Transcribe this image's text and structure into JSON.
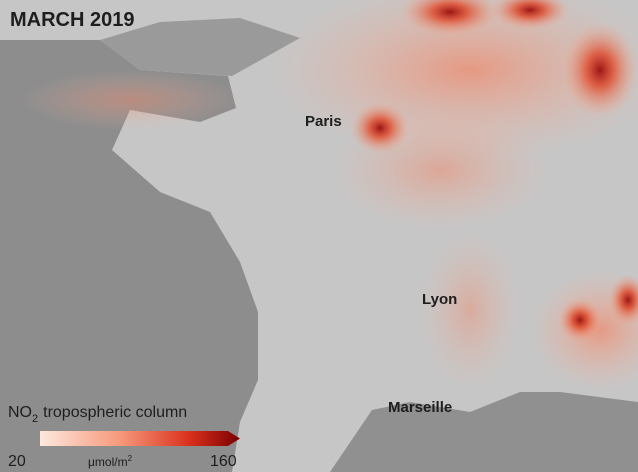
{
  "title": "MARCH 2019",
  "cities": [
    {
      "label": "Paris"
    },
    {
      "label": "Lyon"
    },
    {
      "label": "Marseille"
    }
  ],
  "legend": {
    "title": {
      "main": "NO",
      "subscript": "2",
      "rest": "tropospheric column"
    },
    "min": 20,
    "max": 160,
    "unit": {
      "main": "μmol/m",
      "superscript": "2"
    }
  }
}
